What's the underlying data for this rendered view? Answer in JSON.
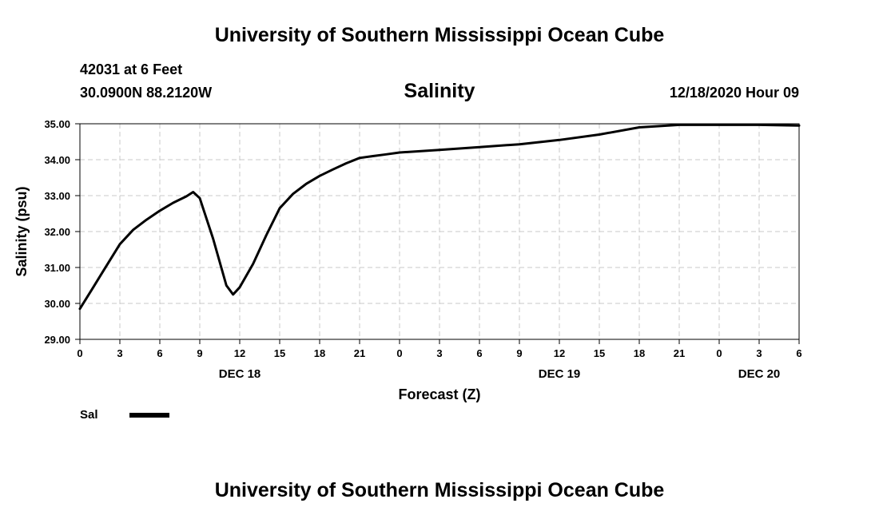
{
  "header": {
    "title": "University of Southern Mississippi Ocean Cube",
    "station": "42031 at 6 Feet",
    "coords": "30.0900N 88.2120W",
    "subtitle": "Salinity",
    "datetime": "12/18/2020 Hour 09"
  },
  "footer": {
    "title": "University of Southern Mississippi Ocean Cube"
  },
  "colors": {
    "line": "#000000",
    "grid": "#c8c8c8"
  },
  "chart_data": {
    "type": "line",
    "title": "Salinity",
    "xlabel": "Forecast (Z)",
    "ylabel": "Salinity (psu)",
    "xlim": [
      0,
      54
    ],
    "ylim": [
      29,
      35
    ],
    "grid": true,
    "x_tick_values": [
      0,
      3,
      6,
      9,
      12,
      15,
      18,
      21,
      24,
      27,
      30,
      33,
      36,
      39,
      42,
      45,
      48,
      51,
      54
    ],
    "x_tick_labels": [
      "0",
      "3",
      "6",
      "9",
      "12",
      "15",
      "18",
      "21",
      "0",
      "3",
      "6",
      "9",
      "12",
      "15",
      "18",
      "21",
      "0",
      "3",
      "6"
    ],
    "day_labels": [
      {
        "x": 12,
        "label": "DEC 18"
      },
      {
        "x": 36,
        "label": "DEC 19"
      },
      {
        "x": 51,
        "label": "DEC 20"
      }
    ],
    "y_ticks": [
      29,
      30,
      31,
      32,
      33,
      34,
      35
    ],
    "y_tick_labels": [
      "29.00",
      "30.00",
      "31.00",
      "32.00",
      "33.00",
      "34.00",
      "35.00"
    ],
    "legend": {
      "label": "Sal",
      "position": "bottom-left"
    },
    "series": [
      {
        "name": "Sal",
        "x": [
          0,
          1,
          2,
          3,
          4,
          5,
          6,
          7,
          8,
          8.5,
          9,
          10,
          11,
          11.5,
          12,
          13,
          14,
          15,
          16,
          17,
          18,
          19,
          20,
          21,
          22,
          23,
          24,
          27,
          30,
          33,
          36,
          39,
          42,
          45,
          48,
          51,
          54
        ],
        "values": [
          29.85,
          30.45,
          31.05,
          31.65,
          32.05,
          32.33,
          32.58,
          32.8,
          32.98,
          33.1,
          32.93,
          31.8,
          30.5,
          30.25,
          30.45,
          31.1,
          31.9,
          32.65,
          33.05,
          33.33,
          33.55,
          33.73,
          33.9,
          34.05,
          34.1,
          34.15,
          34.2,
          34.27,
          34.35,
          34.43,
          34.55,
          34.7,
          34.9,
          34.97,
          34.97,
          34.97,
          34.95
        ]
      }
    ]
  }
}
